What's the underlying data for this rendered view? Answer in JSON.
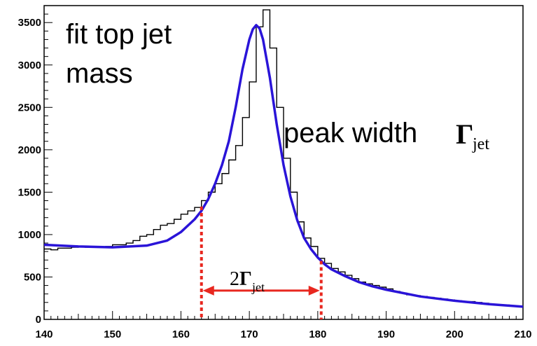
{
  "chart_data": {
    "type": "line",
    "title": "",
    "xlabel": "",
    "ylabel": "",
    "xlim": [
      140,
      210
    ],
    "ylim": [
      0,
      3700
    ],
    "x_ticks": [
      "140",
      "150",
      "160",
      "170",
      "180",
      "190",
      "200",
      "210"
    ],
    "y_ticks": [
      "0",
      "500",
      "1000",
      "1500",
      "2000",
      "2500",
      "3000",
      "3500"
    ],
    "histogram": {
      "bin_width": 1,
      "x_start": 140,
      "counts": [
        830,
        820,
        840,
        840,
        850,
        860,
        850,
        860,
        850,
        860,
        880,
        880,
        900,
        930,
        980,
        1000,
        1060,
        1110,
        1130,
        1180,
        1240,
        1280,
        1320,
        1400,
        1500,
        1600,
        1720,
        1880,
        2050,
        2380,
        2800,
        3450,
        3650,
        3200,
        2500,
        1900,
        1500,
        1150,
        960,
        860,
        720,
        660,
        600,
        560,
        520,
        480,
        440,
        420,
        400,
        380,
        360,
        330,
        310,
        290,
        280,
        270,
        260,
        250,
        240,
        230,
        220,
        210,
        210,
        200,
        190,
        180,
        175,
        170,
        160,
        150
      ],
      "color": "#000000"
    },
    "fit": {
      "x": [
        140,
        145,
        150,
        155,
        158,
        160,
        162,
        163,
        164,
        165,
        166,
        167,
        168,
        169,
        170,
        170.5,
        171,
        171.5,
        172,
        173,
        174,
        175,
        176,
        177,
        178,
        179,
        180,
        181,
        182,
        184,
        186,
        188,
        190,
        195,
        200,
        205,
        210
      ],
      "y": [
        880,
        860,
        850,
        870,
        930,
        1030,
        1180,
        1280,
        1420,
        1600,
        1820,
        2100,
        2500,
        2950,
        3300,
        3420,
        3470,
        3430,
        3300,
        2850,
        2300,
        1820,
        1450,
        1170,
        960,
        830,
        730,
        650,
        590,
        510,
        440,
        390,
        350,
        270,
        220,
        180,
        150
      ],
      "color": "#2a14d8"
    },
    "width_markers": {
      "x_left": 163,
      "x_right": 180.5,
      "y_left": 1330,
      "y_right": 690,
      "arrow_y": 340,
      "color": "#e8271f"
    },
    "annotations": {
      "fit_line1": "fit top jet",
      "fit_line2": "mass",
      "peak_text": "peak width",
      "gamma": "Γ",
      "gamma_sub": "jet",
      "width_prefix": "2",
      "width_gamma": "Γ",
      "width_sub": "jet"
    }
  }
}
